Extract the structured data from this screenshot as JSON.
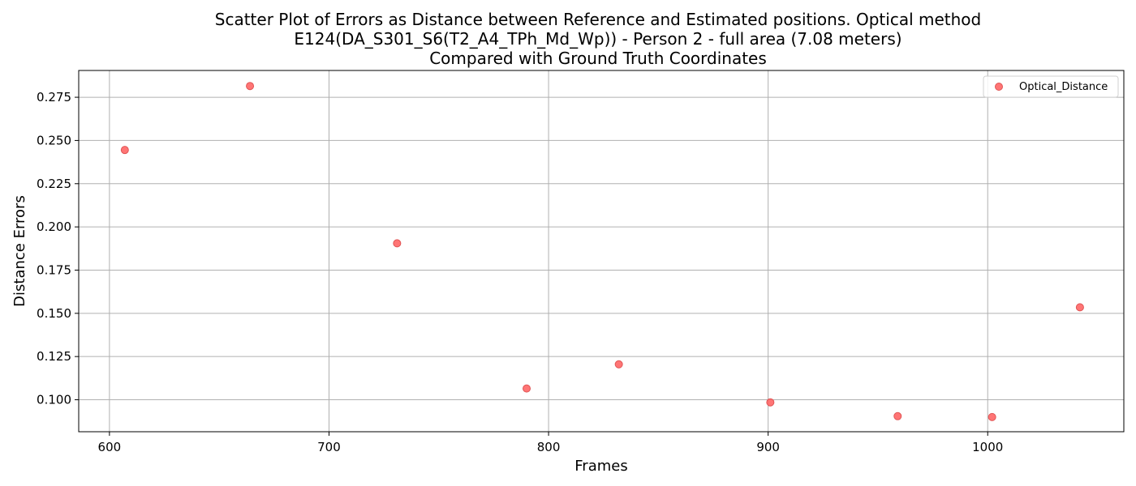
{
  "chart_data": {
    "type": "scatter",
    "title_lines": [
      "Scatter Plot of Errors as Distance between Reference and Estimated positions. Optical method",
      "E124(DA_S301_S6(T2_A4_TPh_Md_Wp)) - Person 2 - full area (7.08 meters)",
      "Compared with Ground Truth Coordinates"
    ],
    "xlabel": "Frames",
    "ylabel": "Distance Errors",
    "xlim": [
      586,
      1062
    ],
    "ylim": [
      0.0815,
      0.2905
    ],
    "xticks": [
      600,
      700,
      800,
      900,
      1000
    ],
    "xtick_labels": [
      "600",
      "700",
      "800",
      "900",
      "1000"
    ],
    "yticks": [
      0.1,
      0.125,
      0.15,
      0.175,
      0.2,
      0.225,
      0.25,
      0.275
    ],
    "ytick_labels": [
      "0.100",
      "0.125",
      "0.150",
      "0.175",
      "0.200",
      "0.225",
      "0.250",
      "0.275"
    ],
    "grid": true,
    "legend_position": "top-right",
    "series": [
      {
        "name": "Optical_Distance",
        "color": "#ff6666",
        "edge_color": "#e05555",
        "points": [
          {
            "x": 607,
            "y": 0.2445
          },
          {
            "x": 664,
            "y": 0.2815
          },
          {
            "x": 731,
            "y": 0.1905
          },
          {
            "x": 790,
            "y": 0.1065
          },
          {
            "x": 832,
            "y": 0.1205
          },
          {
            "x": 901,
            "y": 0.0985
          },
          {
            "x": 959,
            "y": 0.0905
          },
          {
            "x": 1002,
            "y": 0.09
          },
          {
            "x": 1042,
            "y": 0.1535
          }
        ]
      }
    ]
  }
}
